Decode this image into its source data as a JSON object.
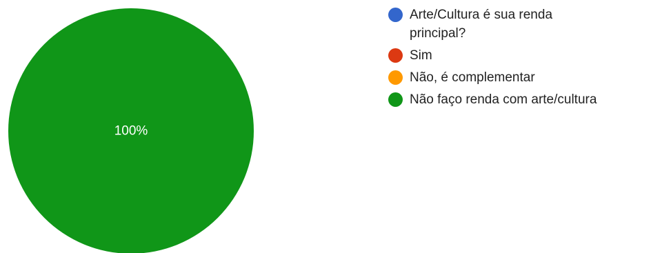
{
  "chart_data": {
    "type": "pie",
    "title": "",
    "legend_position": "right",
    "legend": [
      {
        "label": "Arte/Cultura é sua renda principal?",
        "color": "#3366cc"
      },
      {
        "label": "Sim",
        "color": "#dc3912"
      },
      {
        "label": "Não, é complementar",
        "color": "#ff9900"
      },
      {
        "label": "Não faço renda com arte/cultura",
        "color": "#109618"
      }
    ],
    "slices": [
      {
        "label": "Não faço renda com arte/cultura",
        "value": 100,
        "color": "#109618",
        "data_label": "100%"
      }
    ]
  }
}
